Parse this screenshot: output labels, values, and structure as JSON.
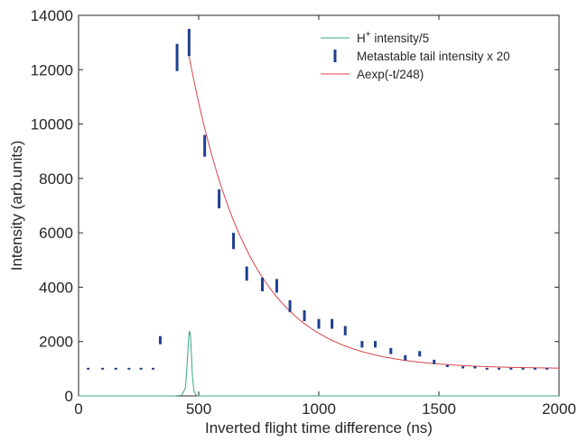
{
  "chart_data": {
    "type": "line",
    "xlabel": "Inverted flight time difference (ns)",
    "ylabel": "Intensity (arb.units)",
    "xlim": [
      0,
      2000
    ],
    "ylim": [
      0,
      14000
    ],
    "xticks": [
      0,
      500,
      1000,
      1500,
      2000
    ],
    "yticks": [
      0,
      2000,
      4000,
      6000,
      8000,
      10000,
      12000,
      14000
    ],
    "grid": false,
    "legend_position": "top-right",
    "legend": {
      "h_main": "H",
      "h_sup": "+",
      "h_rest": " intensity/5",
      "metastable": "Metastable tail intensity x 20",
      "fit": "Aexp(-t/248)"
    },
    "colors": {
      "h_plus": "#3aa58a",
      "metastable": "#1f3f8f",
      "fit": "#d9444c",
      "axis": "#262626"
    },
    "series": [
      {
        "name": "H+ intensity/5",
        "style": "line",
        "x": [
          0,
          400,
          430,
          445,
          452,
          458,
          462,
          466,
          470,
          474,
          480,
          488,
          495,
          500,
          2000
        ],
        "y": [
          0,
          0,
          20,
          300,
          1200,
          2100,
          2400,
          2200,
          1500,
          700,
          200,
          40,
          0,
          0,
          0
        ]
      },
      {
        "name": "Metastable tail intensity x 20",
        "style": "errorbar",
        "x": [
          40,
          100,
          155,
          210,
          260,
          310,
          340,
          410,
          460,
          525,
          585,
          645,
          700,
          765,
          825,
          880,
          940,
          1000,
          1055,
          1110,
          1180,
          1235,
          1300,
          1360,
          1420,
          1480,
          1535,
          1600,
          1650,
          1700,
          1750,
          1800,
          1850,
          1900,
          1950
        ],
        "y": [
          1000,
          1000,
          1000,
          1000,
          1000,
          1000,
          2050,
          12450,
          13000,
          9200,
          7250,
          5700,
          4500,
          4100,
          4050,
          3300,
          2950,
          2650,
          2650,
          2400,
          1900,
          1900,
          1650,
          1400,
          1550,
          1250,
          1100,
          1050,
          1050,
          1000,
          1000,
          1000,
          1000,
          1000,
          1000
        ],
        "err": [
          25,
          25,
          25,
          25,
          25,
          25,
          150,
          500,
          500,
          400,
          350,
          300,
          260,
          250,
          250,
          220,
          200,
          180,
          180,
          170,
          120,
          120,
          110,
          100,
          100,
          80,
          40,
          40,
          40,
          25,
          25,
          25,
          25,
          25,
          25
        ]
      },
      {
        "name": "Aexp(-t/248)",
        "style": "line",
        "function": {
          "amplitude": 11500,
          "offset": 1000,
          "tau": 248,
          "t0": 460,
          "x_end": 2000
        }
      }
    ]
  }
}
